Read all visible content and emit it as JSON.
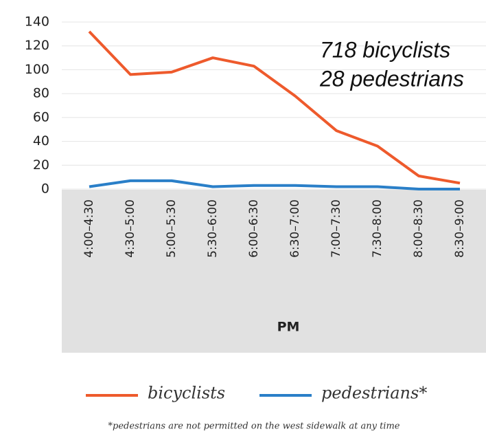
{
  "chart_data": {
    "type": "line",
    "categories": [
      "4:00–4:30",
      "4:30–5:00",
      "5:00–5:30",
      "5:30–6:00",
      "6:00–6:30",
      "6:30–7:00",
      "7:00–7:30",
      "7:30–8:00",
      "8:00–8:30",
      "8:30–9:00"
    ],
    "series": [
      {
        "name": "bicyclists",
        "color": "#ee5a2c",
        "values": [
          132,
          96,
          98,
          110,
          103,
          78,
          49,
          36,
          11,
          5
        ]
      },
      {
        "name": "pedestrians*",
        "color": "#2a7fc8",
        "values": [
          2,
          7,
          7,
          2,
          3,
          3,
          2,
          2,
          0,
          0
        ]
      }
    ],
    "ylim": [
      0,
      140
    ],
    "yticks": [
      0,
      20,
      40,
      60,
      80,
      100,
      120,
      140
    ],
    "grid": true,
    "xlabel": "PM",
    "annotations": [
      "718 bicyclists",
      "28 pedestrians"
    ],
    "footnote": "*pedestrians are not permitted on the west sidewalk at any time"
  }
}
